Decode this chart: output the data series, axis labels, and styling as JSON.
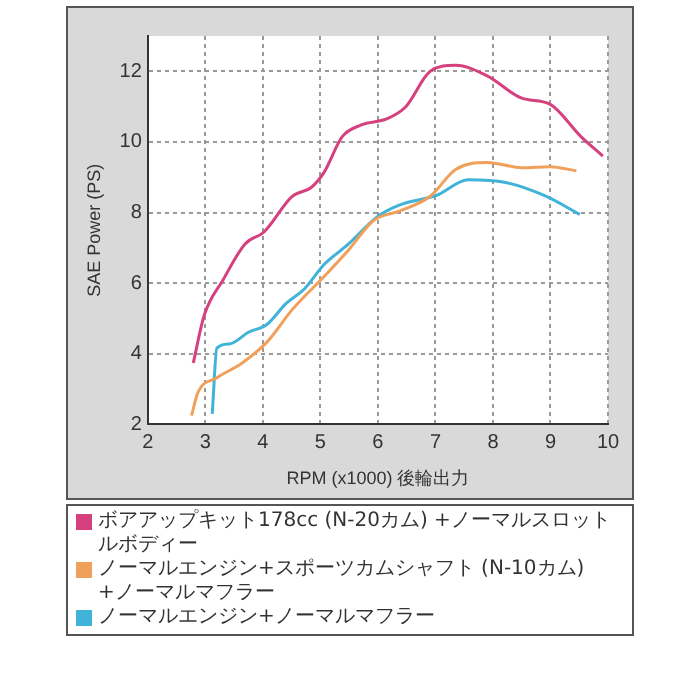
{
  "chart_data": {
    "type": "line",
    "xlabel": "RPM (x1000) 後輪出力",
    "ylabel": "SAE Power (PS)",
    "xlim": [
      2,
      10
    ],
    "ylim": [
      2,
      13
    ],
    "xticks": [
      2,
      3,
      4,
      5,
      6,
      7,
      8,
      9,
      10
    ],
    "yticks": [
      2,
      4,
      6,
      8,
      10,
      12
    ],
    "grid": true,
    "legend": "bottom",
    "marker": "none",
    "line_style": "solid",
    "series": [
      {
        "name": "ボアアップキット178cc (N-20カム) +ノーマルスロットルボディー",
        "color": "#d6407f",
        "x": [
          2.79,
          2.98,
          3.31,
          3.69,
          4.02,
          4.51,
          4.84,
          5.06,
          5.38,
          5.71,
          6.15,
          6.48,
          6.91,
          7.35,
          7.9,
          8.5,
          8.99,
          9.53,
          9.91
        ],
        "values": [
          3.74,
          5.09,
          6.1,
          7.11,
          7.45,
          8.46,
          8.71,
          9.13,
          10.15,
          10.48,
          10.65,
          10.99,
          12.0,
          12.17,
          11.87,
          11.24,
          11.07,
          10.15,
          9.6
        ]
      },
      {
        "name": "ノーマルエンジン+スポーツカムシャフト (N-10カム) +ノーマルマフラー",
        "color": "#f0a05a",
        "x": [
          2.76,
          2.87,
          3.2,
          3.64,
          4.07,
          4.51,
          5.06,
          5.49,
          5.93,
          6.37,
          6.91,
          7.35,
          7.9,
          8.5,
          8.99,
          9.45
        ],
        "values": [
          2.25,
          2.9,
          3.32,
          3.74,
          4.33,
          5.25,
          6.18,
          6.94,
          7.78,
          8.04,
          8.46,
          9.22,
          9.42,
          9.27,
          9.3,
          9.18
        ]
      },
      {
        "name": "ノーマルエンジン+ノーマルマフラー",
        "color": "#3fb3d8",
        "x": [
          3.12,
          3.2,
          3.42,
          3.75,
          4.07,
          4.4,
          4.73,
          5.06,
          5.49,
          5.98,
          6.37,
          7.02,
          7.57,
          8.22,
          8.88,
          9.51
        ],
        "values": [
          2.3,
          4.16,
          4.28,
          4.61,
          4.83,
          5.42,
          5.85,
          6.52,
          7.11,
          7.87,
          8.21,
          8.49,
          8.93,
          8.85,
          8.49,
          7.95
        ]
      }
    ]
  }
}
